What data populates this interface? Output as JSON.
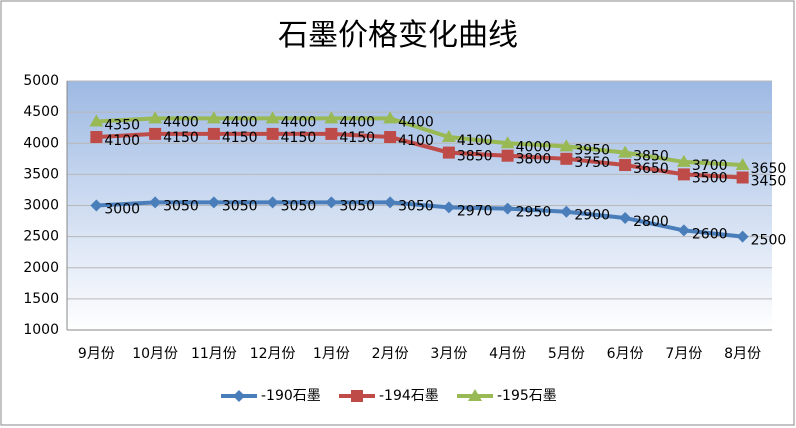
{
  "chart_data": {
    "type": "line",
    "title": "石墨价格变化曲线",
    "categories": [
      "9月份",
      "10月份",
      "11月份",
      "12月份",
      "1月份",
      "2月份",
      "3月份",
      "4月份",
      "5月份",
      "6月份",
      "7月份",
      "8月份"
    ],
    "series": [
      {
        "name": "-190石墨",
        "color": "#4a7ebb",
        "marker": "diamond",
        "values": [
          3000,
          3050,
          3050,
          3050,
          3050,
          3050,
          2970,
          2950,
          2900,
          2800,
          2600,
          2500
        ]
      },
      {
        "name": "-194石墨",
        "color": "#be4b48",
        "marker": "square",
        "values": [
          4100,
          4150,
          4150,
          4150,
          4150,
          4100,
          3850,
          3800,
          3750,
          3650,
          3500,
          3450
        ]
      },
      {
        "name": "-195石墨",
        "color": "#98b954",
        "marker": "triangle",
        "values": [
          4350,
          4400,
          4400,
          4400,
          4400,
          4400,
          4100,
          4000,
          3950,
          3850,
          3700,
          3650
        ]
      }
    ],
    "ylim": [
      1000,
      5000
    ],
    "yticks": [
      1000,
      1500,
      2000,
      2500,
      3000,
      3500,
      4000,
      4500,
      5000
    ],
    "grid": true,
    "legend": "bottom"
  }
}
